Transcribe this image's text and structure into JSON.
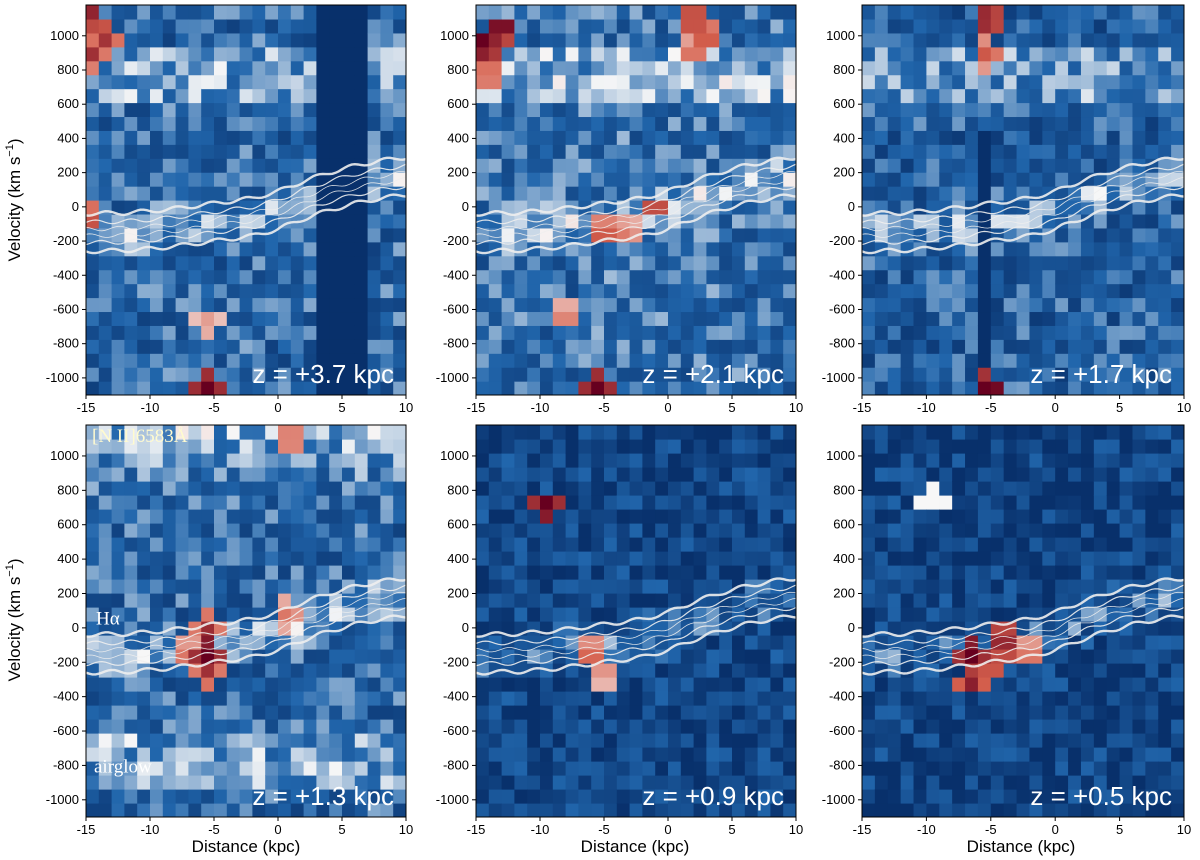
{
  "chart_data": {
    "type": "heatmap",
    "description_grid": "6 panels of position-velocity diagrams arranged 2 rows x 3 columns; diverging blue-white-red colormap with white contour overlays",
    "xlabel": "Distance (kpc)",
    "ylabel": "Velocity (km s⁻¹)",
    "ylabel_parts": {
      "main": "Velocity (km s",
      "sup": "−1",
      "close": ")"
    },
    "xlim": [
      -15,
      10
    ],
    "ylim": [
      -1100,
      1180
    ],
    "xticks": [
      -15,
      -10,
      -5,
      0,
      5,
      10
    ],
    "xtick_labels": [
      "-15",
      "-10",
      "-5",
      "0",
      "5",
      "10"
    ],
    "yticks": [
      -1000,
      -800,
      -600,
      -400,
      -200,
      0,
      200,
      400,
      600,
      800,
      1000
    ],
    "ytick_labels": [
      "-1000",
      "-800",
      "-600",
      "-400",
      "-200",
      "0",
      "200",
      "400",
      "600",
      "800",
      "1000"
    ],
    "colormap": {
      "low": "#08306b",
      "mid": "#f7f7f7",
      "high": "#67001f"
    },
    "contour_color": "#eeeeee",
    "contour_ridge": {
      "x": [
        -15,
        -12,
        -10,
        -8,
        -6,
        -4,
        -2,
        0,
        2,
        4,
        6,
        8,
        10
      ],
      "v": [
        -150,
        -145,
        -135,
        -120,
        -100,
        -80,
        -60,
        -20,
        40,
        90,
        130,
        160,
        180
      ]
    },
    "panels": [
      {
        "z_label": "z = +3.7 kpc",
        "row": 0,
        "col": 0,
        "features": [
          {
            "x": -14.5,
            "v": 900,
            "level": 0.55
          },
          {
            "x": -13.5,
            "v": 1000,
            "level": 0.6
          },
          {
            "x": -14.8,
            "v": 1120,
            "level": 0.7
          },
          {
            "x": -5.5,
            "v": -1060,
            "level": 1.0
          },
          {
            "x": -5.5,
            "v": -680,
            "level": 0.25
          },
          {
            "x": -14.8,
            "v": -60,
            "level": 0.5
          }
        ],
        "dark_columns": [
          4,
          6
        ]
      },
      {
        "z_label": "z = +2.1 kpc",
        "row": 0,
        "col": 1,
        "features": [
          {
            "x": -14.2,
            "v": 950,
            "level": 0.9
          },
          {
            "x": -13,
            "v": 1050,
            "level": 0.85
          },
          {
            "x": -14,
            "v": 780,
            "level": 0.45
          },
          {
            "x": 2,
            "v": 1100,
            "level": 0.6
          },
          {
            "x": 3,
            "v": 1000,
            "level": 0.5
          },
          {
            "x": 2,
            "v": 900,
            "level": 0.4
          },
          {
            "x": -5,
            "v": -150,
            "level": 0.5
          },
          {
            "x": -3.2,
            "v": -150,
            "level": 0.35
          },
          {
            "x": -1,
            "v": 0,
            "level": 0.55
          },
          {
            "x": -5.5,
            "v": -1060,
            "level": 1.0
          },
          {
            "x": -8,
            "v": -650,
            "level": 0.35
          }
        ],
        "dark_columns": []
      },
      {
        "z_label": "z = +1.7 kpc",
        "row": 0,
        "col": 2,
        "features": [
          {
            "x": -5.2,
            "v": 1100,
            "level": 0.75
          },
          {
            "x": -5.2,
            "v": 900,
            "level": 0.45
          },
          {
            "x": -5.2,
            "v": -1060,
            "level": 1.0
          }
        ],
        "dark_columns": [
          -5.3
        ]
      },
      {
        "z_label": "z = +1.3 kpc",
        "row": 1,
        "col": 0,
        "annotations": [
          "[N II]6583Å",
          "Hα",
          "airglow"
        ],
        "features": [
          {
            "x": -5.5,
            "v": -150,
            "level": 1.0
          },
          {
            "x": -5.5,
            "v": -250,
            "level": 0.55
          },
          {
            "x": -5.5,
            "v": 0,
            "level": 0.55
          },
          {
            "x": -7,
            "v": -150,
            "level": 0.4
          },
          {
            "x": 1,
            "v": 1100,
            "level": 0.4
          },
          {
            "x": 0.8,
            "v": 80,
            "level": 0.35
          }
        ],
        "dark_columns": []
      },
      {
        "z_label": "z = +0.9 kpc",
        "row": 1,
        "col": 1,
        "features": [
          {
            "x": -9.5,
            "v": 720,
            "level": 1.0
          },
          {
            "x": -6,
            "v": -150,
            "level": 0.45
          },
          {
            "x": -5,
            "v": -250,
            "level": 0.3
          }
        ],
        "dark_columns": []
      },
      {
        "z_label": "z = +0.5 kpc",
        "row": 1,
        "col": 2,
        "features": [
          {
            "x": -6.5,
            "v": -150,
            "level": 1.0
          },
          {
            "x": -6.5,
            "v": -300,
            "level": 0.7
          },
          {
            "x": -5,
            "v": -200,
            "level": 0.6
          },
          {
            "x": -4,
            "v": -100,
            "level": 0.75
          },
          {
            "x": -4,
            "v": 0,
            "level": 0.6
          },
          {
            "x": -2,
            "v": -150,
            "level": 0.4
          },
          {
            "x": -9.5,
            "v": 760,
            "level": 0.0
          }
        ],
        "dark_columns": []
      }
    ]
  }
}
